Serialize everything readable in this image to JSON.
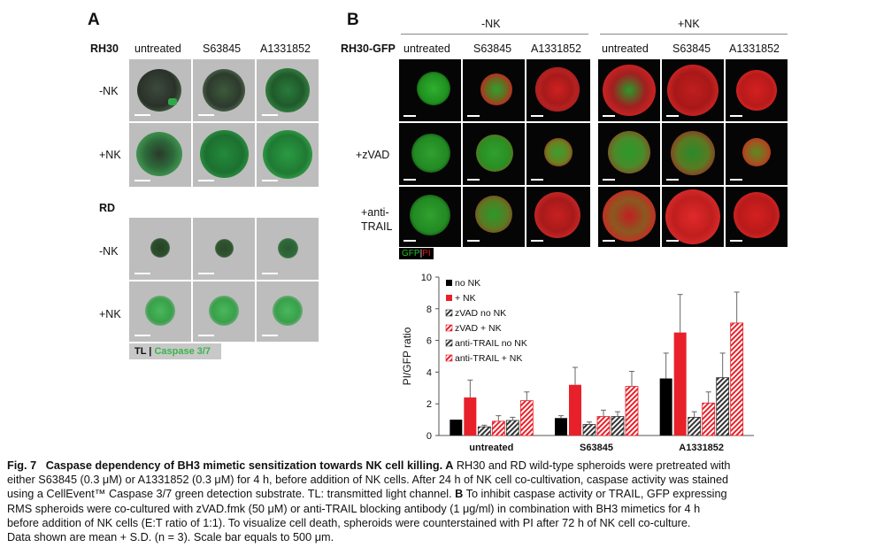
{
  "panel_a": {
    "letter": "A",
    "rh30_label": "RH30",
    "rd_label": "RD",
    "columns": [
      "untreated",
      "S63845",
      "A1331852"
    ],
    "rows": [
      "-NK",
      "+NK"
    ],
    "channel_tl": "TL",
    "channel_sep": " | ",
    "channel_casp": "Caspase 3/7",
    "casp_color": "#3cb44b"
  },
  "panel_b": {
    "letter": "B",
    "group_neg": "-NK",
    "group_pos": "+NK",
    "cell_label": "RH30-GFP",
    "columns": [
      "untreated",
      "S63845",
      "A1331852",
      "untreated",
      "S63845",
      "A1331852"
    ],
    "rows": [
      "",
      "+zVAD",
      "+anti-\nTRAIL"
    ],
    "gfp_label": "GFP",
    "pi_label": "PI",
    "gfp_color": "#27c027",
    "pi_color": "#e01818"
  },
  "chart_data": {
    "type": "bar",
    "categories": [
      "untreated",
      "S63845",
      "A1331852"
    ],
    "ylabel": "PI/GFP ratio",
    "ylim": [
      0,
      10
    ],
    "yticks": [
      0,
      2,
      4,
      6,
      8,
      10
    ],
    "series": [
      {
        "name": "no NK",
        "color": "#000000",
        "pattern": "solid",
        "values": [
          1.0,
          1.1,
          3.6
        ],
        "errors": [
          0.0,
          0.15,
          1.6
        ]
      },
      {
        "name": "+ NK",
        "color": "#e8202a",
        "pattern": "solid",
        "values": [
          2.4,
          3.2,
          6.5
        ],
        "errors": [
          1.1,
          1.1,
          2.4
        ]
      },
      {
        "name": "zVAD no NK",
        "color": "#333333",
        "pattern": "hatch",
        "values": [
          0.55,
          0.7,
          1.15
        ],
        "errors": [
          0.1,
          0.15,
          0.35
        ]
      },
      {
        "name": "zVAD + NK",
        "color": "#e8202a",
        "pattern": "hatch",
        "values": [
          0.9,
          1.2,
          2.05
        ],
        "errors": [
          0.35,
          0.4,
          0.7
        ]
      },
      {
        "name": "anti-TRAIL no NK",
        "color": "#333333",
        "pattern": "hatch",
        "values": [
          0.95,
          1.2,
          3.65
        ],
        "errors": [
          0.2,
          0.3,
          1.55
        ]
      },
      {
        "name": "anti-TRAIL + NK",
        "color": "#e8202a",
        "pattern": "hatch",
        "values": [
          2.2,
          3.1,
          7.1
        ],
        "errors": [
          0.55,
          0.95,
          1.95
        ]
      }
    ]
  },
  "caption": {
    "fig": "Fig. 7",
    "title": "Caspase dependency of BH3 mimetic sensitization towards NK cell killing.",
    "line1_a": " A",
    "line1_b": " RH30 and RD wild-type spheroids were pretreated with",
    "line2": "either S63845 (0.3 μM) or A1331852 (0.3 μM) for 4 h, before addition of NK cells. After 24 h of NK cell co-cultivation, caspase activity was stained",
    "line3_a": "using a CellEvent™ Caspase 3/7 green detection substrate. TL: transmitted light channel.",
    "line3_b": " B",
    "line3_c": " To inhibit caspase activity or TRAIL, GFP expressing",
    "line4": "RMS spheroids were co-cultured with zVAD.fmk (50 μM) or anti-TRAIL blocking antibody (1 μg/ml) in combination with BH3 mimetics for 4 h",
    "line5": "before addition of NK cells (E:T ratio of 1:1). To visualize cell death, spheroids were counterstained with PI after 72 h of NK cell co-culture.",
    "line6": "Data shown are mean + S.D. (n = 3). Scale bar equals to 500 μm."
  }
}
